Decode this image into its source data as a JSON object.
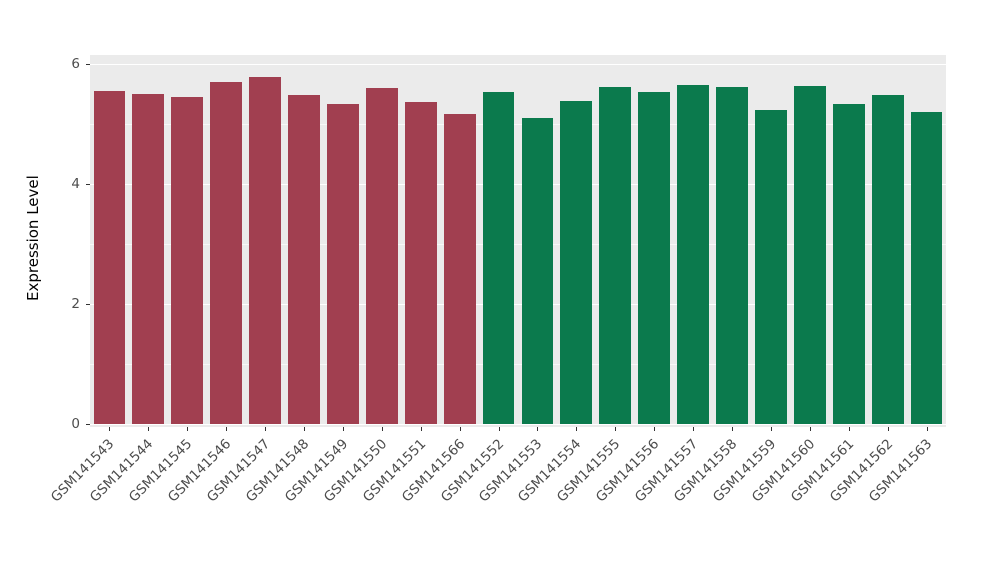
{
  "figure": {
    "background": "#FFFFFF",
    "panel_background": "#EBEBEB",
    "gridline_color": "#FFFFFF",
    "axis_text_color": "#4D4D4D"
  },
  "chart_data": {
    "type": "bar",
    "title": "",
    "xlabel": "",
    "ylabel": "Expression Level",
    "ylim": [
      0,
      6
    ],
    "yticks": [
      0,
      2,
      4,
      6
    ],
    "yticks_minor": [
      1,
      3,
      5
    ],
    "grid": true,
    "legend": "none",
    "x_label_angle": 45,
    "categories": [
      "GSM141543",
      "GSM141544",
      "GSM141545",
      "GSM141546",
      "GSM141547",
      "GSM141548",
      "GSM141549",
      "GSM141550",
      "GSM141551",
      "GSM141566",
      "GSM141552",
      "GSM141553",
      "GSM141554",
      "GSM141555",
      "GSM141556",
      "GSM141557",
      "GSM141558",
      "GSM141559",
      "GSM141560",
      "GSM141561",
      "GSM141562",
      "GSM141563"
    ],
    "values": [
      5.55,
      5.5,
      5.45,
      5.7,
      5.78,
      5.48,
      5.33,
      5.6,
      5.36,
      5.17,
      5.54,
      5.1,
      5.38,
      5.62,
      5.53,
      5.65,
      5.61,
      5.23,
      5.63,
      5.33,
      5.49,
      5.2
    ],
    "group": [
      "A",
      "A",
      "A",
      "A",
      "A",
      "A",
      "A",
      "A",
      "A",
      "A",
      "B",
      "B",
      "B",
      "B",
      "B",
      "B",
      "B",
      "B",
      "B",
      "B",
      "B",
      "B"
    ],
    "group_colors": {
      "A": "#A13F50",
      "B": "#0B7A4D"
    }
  }
}
